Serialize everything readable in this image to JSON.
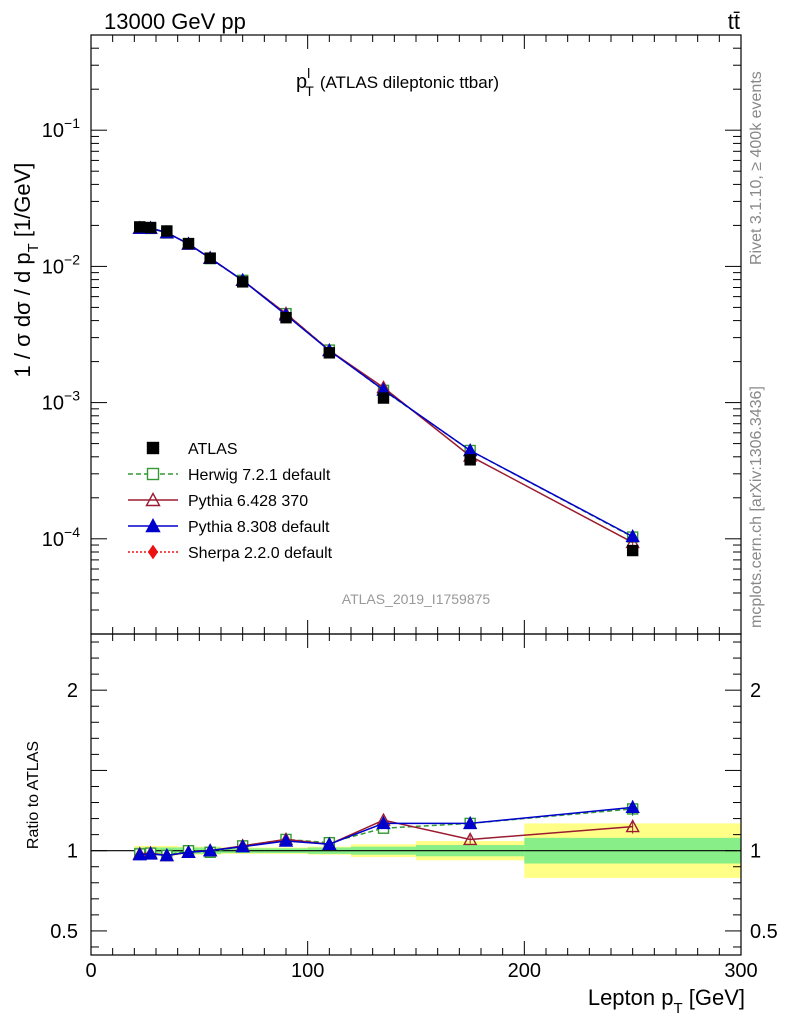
{
  "header": {
    "left": "13000 GeV pp",
    "right": "tt̄"
  },
  "side_labels": {
    "rivet": "Rivet 3.1.10, ≥ 400k events",
    "mcplots": "mcplots.cern.ch [arXiv:1306.3436]"
  },
  "chart_data": [
    {
      "type": "line",
      "panel": "main",
      "title_main": "p",
      "title_sup": "l",
      "title_sub": "T",
      "title_rest": "(ATLAS dileptonic ttbar)",
      "ylabel_main": "1 / σ  dσ / d p",
      "ylabel_sub": "T",
      "ylabel_rest": " [1/GeV]",
      "watermark": "ATLAS_2019_I1759875",
      "yscale": "log",
      "ylim": [
        2e-05,
        0.5
      ],
      "xlim": [
        0,
        300
      ],
      "yticks_major": [
        {
          "value": 0.1,
          "base": "10",
          "exp": "−1"
        },
        {
          "value": 0.01,
          "base": "10",
          "exp": "−2"
        },
        {
          "value": 0.001,
          "base": "10",
          "exp": "−3"
        },
        {
          "value": 0.0001,
          "base": "10",
          "exp": "−4"
        }
      ],
      "legend_position": "left-lower",
      "series": [
        {
          "name": "ATLAS",
          "color": "#000000",
          "marker": "square-filled",
          "line": "none",
          "x": [
            22.5,
            27.5,
            35,
            45,
            55,
            70,
            90,
            110,
            135,
            175,
            250
          ],
          "y": [
            0.0195,
            0.0193,
            0.0182,
            0.0147,
            0.0115,
            0.0077,
            0.0042,
            0.00232,
            0.00108,
            0.00038,
            8.2e-05
          ]
        },
        {
          "name": "Herwig 7.2.1 default",
          "color": "#339933",
          "marker": "square-open",
          "line": "dashed",
          "x": [
            22.5,
            27.5,
            35,
            45,
            55,
            70,
            90,
            110,
            135,
            175,
            250
          ],
          "y": [
            0.0191,
            0.019,
            0.0176,
            0.0147,
            0.0114,
            0.0079,
            0.0045,
            0.00243,
            0.00123,
            0.000445,
            0.000103
          ]
        },
        {
          "name": "Pythia 6.428 370",
          "color": "#9b1b30",
          "marker": "triangle-open",
          "line": "solid",
          "x": [
            22.5,
            27.5,
            35,
            45,
            55,
            70,
            90,
            110,
            135,
            175,
            250
          ],
          "y": [
            0.0191,
            0.0191,
            0.0177,
            0.0146,
            0.0115,
            0.0079,
            0.0045,
            0.00242,
            0.00129,
            0.000405,
            9.4e-05
          ]
        },
        {
          "name": "Pythia 8.308 default",
          "color": "#0000cc",
          "marker": "triangle-filled",
          "line": "solid",
          "x": [
            22.5,
            27.5,
            35,
            45,
            55,
            70,
            90,
            110,
            135,
            175,
            250
          ],
          "y": [
            0.0191,
            0.0191,
            0.0177,
            0.0146,
            0.0115,
            0.0079,
            0.0044,
            0.00241,
            0.00124,
            0.000445,
            0.000104
          ]
        },
        {
          "name": "Sherpa 2.2.0 default",
          "color": "#ee1111",
          "marker": "diamond-filled",
          "line": "dotted",
          "x": [],
          "y": []
        }
      ]
    },
    {
      "type": "line",
      "panel": "ratio",
      "ylabel": "Ratio to ATLAS",
      "yscale": "linear",
      "ylim": [
        0.35,
        2.35
      ],
      "xlim": [
        0,
        300
      ],
      "xlabel_main": "Lepton p",
      "xlabel_sub": "T",
      "xlabel_rest": " [GeV]",
      "xticks": [
        "0",
        "100",
        "200",
        "300"
      ],
      "yticks": [
        "0.5",
        "1",
        "2"
      ],
      "uncertainty_bands": {
        "bins": [
          [
            20,
            25
          ],
          [
            25,
            30
          ],
          [
            30,
            40
          ],
          [
            40,
            50
          ],
          [
            50,
            60
          ],
          [
            60,
            80
          ],
          [
            80,
            100
          ],
          [
            100,
            120
          ],
          [
            120,
            150
          ],
          [
            150,
            200
          ],
          [
            200,
            300
          ]
        ],
        "stat": [
          0.02,
          0.02,
          0.02,
          0.02,
          0.02,
          0.015,
          0.015,
          0.02,
          0.025,
          0.035,
          0.08
        ],
        "total": [
          0.03,
          0.03,
          0.03,
          0.025,
          0.025,
          0.02,
          0.02,
          0.025,
          0.04,
          0.06,
          0.17
        ]
      },
      "series": [
        {
          "name": "Herwig 7.2.1 default",
          "color": "#339933",
          "marker": "square-open",
          "line": "dashed",
          "x": [
            22.5,
            27.5,
            35,
            45,
            55,
            70,
            90,
            110,
            135,
            175,
            250
          ],
          "y": [
            0.98,
            0.985,
            0.97,
            1.0,
            0.99,
            1.03,
            1.07,
            1.05,
            1.14,
            1.17,
            1.26
          ]
        },
        {
          "name": "Pythia 6.428 370",
          "color": "#9b1b30",
          "marker": "triangle-open",
          "line": "solid",
          "x": [
            22.5,
            27.5,
            35,
            45,
            55,
            70,
            90,
            110,
            135,
            175,
            250
          ],
          "y": [
            0.98,
            0.985,
            0.97,
            0.99,
            1.0,
            1.03,
            1.07,
            1.04,
            1.19,
            1.07,
            1.15
          ]
        },
        {
          "name": "Pythia 8.308 default",
          "color": "#0000cc",
          "marker": "triangle-filled",
          "line": "solid",
          "x": [
            22.5,
            27.5,
            35,
            45,
            55,
            70,
            90,
            110,
            135,
            175,
            250
          ],
          "y": [
            0.975,
            0.98,
            0.97,
            0.99,
            1.0,
            1.025,
            1.06,
            1.04,
            1.17,
            1.17,
            1.27
          ]
        }
      ]
    }
  ]
}
